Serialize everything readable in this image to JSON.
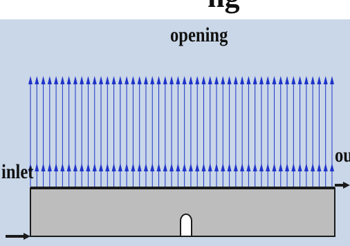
{
  "labels": {
    "top_text": "ng",
    "opening": "opening",
    "inlet": "inlet",
    "outlet": "outl"
  },
  "colors": {
    "background": "#c9d7e8",
    "arrow": "#1f33c8",
    "channel_fill": "#bdbdbd",
    "outline": "#1a1a1a"
  },
  "opening": {
    "arrow_count": 48
  },
  "icons": {
    "inlet_arrow": "arrow-right-icon",
    "outlet_arrow": "arrow-right-icon",
    "wall_bump": "semicircle-bump-icon"
  }
}
